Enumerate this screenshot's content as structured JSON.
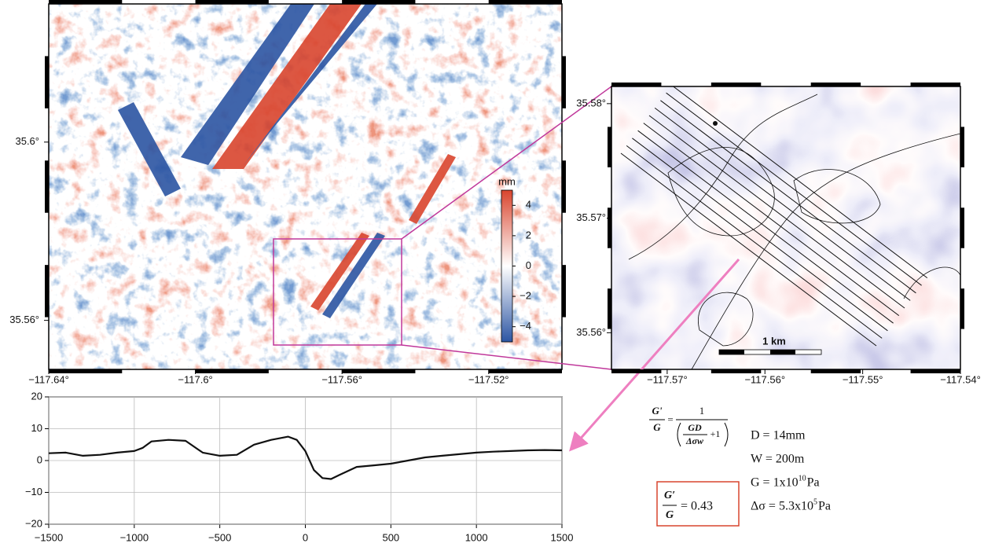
{
  "main_map": {
    "xlim": [
      -117.64,
      -117.5
    ],
    "ylim": [
      35.549,
      35.631
    ],
    "xticks": [
      {
        "value": -117.64,
        "label": "−117.64°"
      },
      {
        "value": -117.6,
        "label": "−117.6°"
      },
      {
        "value": -117.56,
        "label": "−117.56°"
      },
      {
        "value": -117.52,
        "label": "−117.52°"
      }
    ],
    "yticks": [
      {
        "value": 35.6,
        "label": "35.6°"
      },
      {
        "value": 35.56,
        "label": "35.56°"
      }
    ]
  },
  "colorbar": {
    "label": "mm",
    "lim": [
      -5,
      5
    ],
    "ticks": [
      {
        "value": 4,
        "label": "4"
      },
      {
        "value": 2,
        "label": "2"
      },
      {
        "value": 0,
        "label": "0"
      },
      {
        "value": -2,
        "label": "−2"
      },
      {
        "value": -4,
        "label": "−4"
      }
    ]
  },
  "inset_map": {
    "xlim": [
      -117.5757,
      -117.54
    ],
    "ylim": [
      35.5568,
      35.5815
    ],
    "xticks": [
      {
        "value": -117.57,
        "label": "−117.57°"
      },
      {
        "value": -117.56,
        "label": "−117.56°"
      },
      {
        "value": -117.55,
        "label": "−117.55°"
      },
      {
        "value": -117.54,
        "label": "−117.54°"
      }
    ],
    "yticks": [
      {
        "value": 35.58,
        "label": "35.58°"
      },
      {
        "value": 35.57,
        "label": "35.57°"
      },
      {
        "value": 35.56,
        "label": "35.56°"
      }
    ],
    "scale_bar": "1 km"
  },
  "chart_data": {
    "type": "line",
    "color": "#111111",
    "grid": true,
    "x": [
      -1500,
      -1400,
      -1300,
      -1200,
      -1100,
      -1000,
      -950,
      -900,
      -800,
      -700,
      -600,
      -500,
      -400,
      -300,
      -200,
      -100,
      -50,
      0,
      50,
      100,
      150,
      200,
      300,
      400,
      500,
      600,
      700,
      800,
      900,
      1000,
      1100,
      1200,
      1300,
      1400,
      1500
    ],
    "values": [
      2.3,
      2.5,
      1.5,
      1.8,
      2.5,
      3,
      4,
      6,
      6.5,
      6.2,
      2.5,
      1.5,
      1.8,
      5,
      6.5,
      7.5,
      6.5,
      3,
      -3,
      -5.5,
      -5.8,
      -4.5,
      -2,
      -1.5,
      -1,
      0,
      1,
      1.5,
      2,
      2.5,
      2.8,
      3,
      3.2,
      3.3,
      3.2
    ],
    "xlim": [
      -1500,
      1500
    ],
    "ylim": [
      -20,
      20
    ],
    "xticks": [
      {
        "value": -1500,
        "label": "−1500"
      },
      {
        "value": -1000,
        "label": "−1000"
      },
      {
        "value": -500,
        "label": "−500"
      },
      0,
      500,
      1000,
      1500
    ],
    "yticks": [
      20,
      10,
      0,
      {
        "value": -10,
        "label": "−10"
      },
      {
        "value": -20,
        "label": "−20"
      }
    ]
  },
  "equation": {
    "lhs_num": "G'",
    "lhs_den": "G",
    "equals": "=",
    "rhs_num": "1",
    "inner_num": "GD",
    "inner_den": "Δσw",
    "plus_one": "+1"
  },
  "result": {
    "num": "G′",
    "den": "G",
    "value": "= 0.43"
  },
  "params": [
    {
      "main": "D = 14mm"
    },
    {
      "main": "W = 200m"
    },
    {
      "main": "G = 1x10",
      "sup": "10",
      "unit": "Pa"
    },
    {
      "main": "Δσ = 5.3x10",
      "sup": "5",
      "unit": "Pa"
    }
  ]
}
